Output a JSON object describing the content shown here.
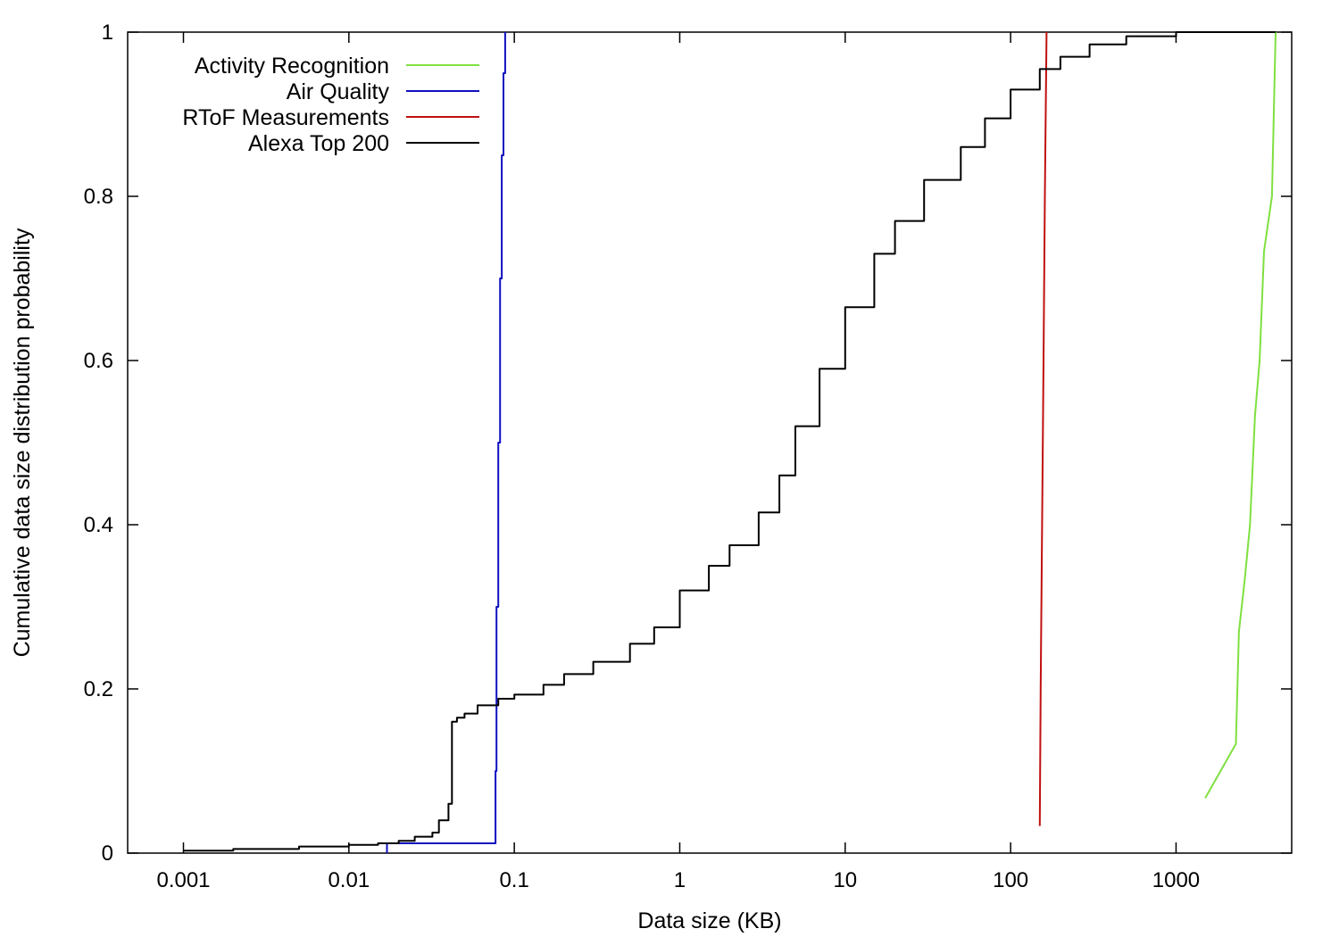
{
  "chart_data": {
    "type": "line",
    "title": "",
    "xlabel": "Data size (KB)",
    "ylabel": "Cumulative data size distribution probability",
    "x_scale": "log",
    "xlim": [
      0.00046,
      5000
    ],
    "ylim": [
      0,
      1
    ],
    "x_ticks": [
      {
        "value": 0.001,
        "label": "0.001"
      },
      {
        "value": 0.01,
        "label": "0.01"
      },
      {
        "value": 0.1,
        "label": "0.1"
      },
      {
        "value": 1,
        "label": "1"
      },
      {
        "value": 10,
        "label": "10"
      },
      {
        "value": 100,
        "label": "100"
      },
      {
        "value": 1000,
        "label": "1000"
      }
    ],
    "y_ticks": [
      {
        "value": 0,
        "label": "0"
      },
      {
        "value": 0.2,
        "label": "0.2"
      },
      {
        "value": 0.4,
        "label": "0.4"
      },
      {
        "value": 0.6,
        "label": "0.6"
      },
      {
        "value": 0.8,
        "label": "0.8"
      },
      {
        "value": 1,
        "label": "1"
      }
    ],
    "grid": false,
    "legend_position": "top-left",
    "series": [
      {
        "name": "Activity Recognition",
        "color": "#7fe040",
        "step": false,
        "points": [
          [
            1500,
            0.067
          ],
          [
            2300,
            0.133
          ],
          [
            2400,
            0.27
          ],
          [
            2600,
            0.333
          ],
          [
            2800,
            0.4
          ],
          [
            3000,
            0.533
          ],
          [
            3200,
            0.6
          ],
          [
            3400,
            0.733
          ],
          [
            3800,
            0.8
          ],
          [
            4000,
            1.0
          ]
        ]
      },
      {
        "name": "Air Quality",
        "color": "#1010c0",
        "step": true,
        "points": [
          [
            0.017,
            0.0
          ],
          [
            0.017,
            0.012
          ],
          [
            0.075,
            0.012
          ],
          [
            0.077,
            0.1
          ],
          [
            0.078,
            0.3
          ],
          [
            0.08,
            0.5
          ],
          [
            0.082,
            0.7
          ],
          [
            0.084,
            0.85
          ],
          [
            0.086,
            0.95
          ],
          [
            0.088,
            1.0
          ]
        ]
      },
      {
        "name": "RToF Measurements",
        "color": "#c01010",
        "step": false,
        "points": [
          [
            150,
            0.033
          ],
          [
            152,
            0.2
          ],
          [
            155,
            0.4
          ],
          [
            158,
            0.6
          ],
          [
            161,
            0.8
          ],
          [
            165,
            1.0
          ]
        ]
      },
      {
        "name": "Alexa Top 200",
        "color": "#000000",
        "step": true,
        "points": [
          [
            0.001,
            0.003
          ],
          [
            0.002,
            0.005
          ],
          [
            0.005,
            0.008
          ],
          [
            0.01,
            0.01
          ],
          [
            0.015,
            0.012
          ],
          [
            0.02,
            0.015
          ],
          [
            0.025,
            0.02
          ],
          [
            0.032,
            0.025
          ],
          [
            0.035,
            0.04
          ],
          [
            0.04,
            0.06
          ],
          [
            0.042,
            0.16
          ],
          [
            0.045,
            0.165
          ],
          [
            0.05,
            0.17
          ],
          [
            0.06,
            0.18
          ],
          [
            0.08,
            0.188
          ],
          [
            0.1,
            0.193
          ],
          [
            0.15,
            0.205
          ],
          [
            0.2,
            0.218
          ],
          [
            0.3,
            0.233
          ],
          [
            0.5,
            0.255
          ],
          [
            0.7,
            0.275
          ],
          [
            1.0,
            0.32
          ],
          [
            1.5,
            0.35
          ],
          [
            2.0,
            0.375
          ],
          [
            3.0,
            0.415
          ],
          [
            4.0,
            0.46
          ],
          [
            5.0,
            0.52
          ],
          [
            7.0,
            0.59
          ],
          [
            10.0,
            0.665
          ],
          [
            15.0,
            0.73
          ],
          [
            20.0,
            0.77
          ],
          [
            30.0,
            0.82
          ],
          [
            50.0,
            0.86
          ],
          [
            70.0,
            0.895
          ],
          [
            100.0,
            0.93
          ],
          [
            150.0,
            0.955
          ],
          [
            200.0,
            0.97
          ],
          [
            300.0,
            0.985
          ],
          [
            500.0,
            0.995
          ],
          [
            1000.0,
            1.0
          ],
          [
            4000.0,
            1.0
          ]
        ]
      }
    ]
  }
}
